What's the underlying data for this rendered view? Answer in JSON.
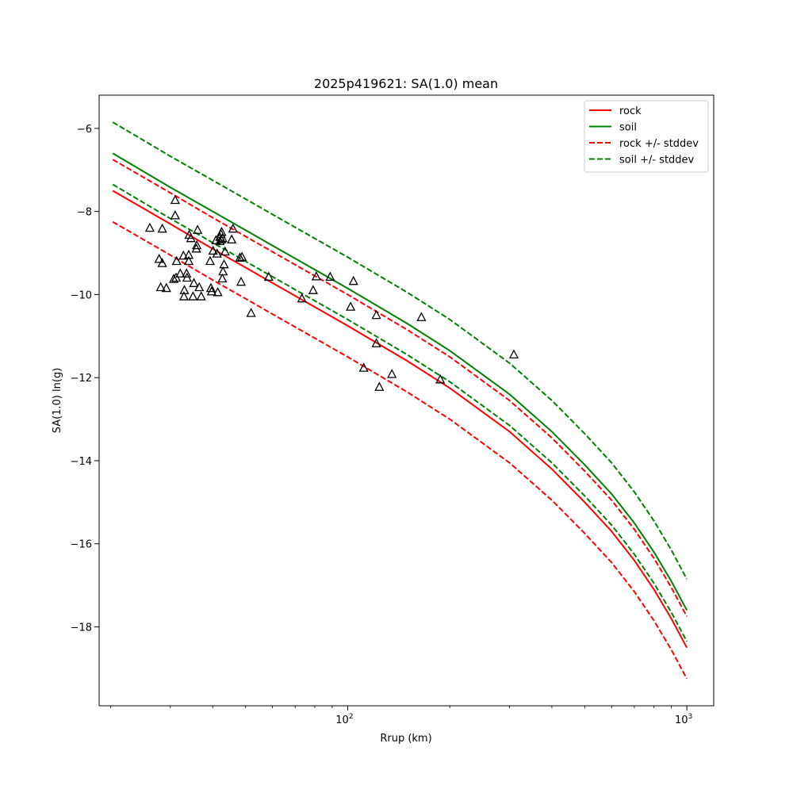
{
  "chart_data": {
    "type": "line",
    "title": "2025p419621: SA(1.0) mean",
    "xlabel": "Rrup (km)",
    "ylabel": "SA(1.0) ln(g)",
    "x_scale": "log",
    "xlim": [
      18.5,
      1200
    ],
    "ylim": [
      -19.9,
      -5.2
    ],
    "x_major_ticks": [
      {
        "value": 100,
        "base": "10",
        "exp": "2"
      },
      {
        "value": 1000,
        "base": "10",
        "exp": "3"
      }
    ],
    "x_minor_ticks": [
      20,
      30,
      40,
      50,
      60,
      70,
      80,
      90,
      200,
      300,
      400,
      500,
      600,
      700,
      800,
      900
    ],
    "y_ticks": [
      {
        "value": -6,
        "label": "−6"
      },
      {
        "value": -8,
        "label": "−8"
      },
      {
        "value": -10,
        "label": "−10"
      },
      {
        "value": -12,
        "label": "−12"
      },
      {
        "value": -14,
        "label": "−14"
      },
      {
        "value": -16,
        "label": "−16"
      },
      {
        "value": -18,
        "label": "−18"
      }
    ],
    "grid": false,
    "legend_position": "top-right",
    "series": [
      {
        "name": "rock",
        "style": "solid",
        "color": "#ff0000",
        "x": [
          20.3,
          30,
          40,
          50,
          60,
          80,
          100,
          150,
          200,
          300,
          400,
          500,
          600,
          700,
          800,
          900,
          1000
        ],
        "y": [
          -7.5,
          -8.3,
          -8.9,
          -9.35,
          -9.72,
          -10.3,
          -10.75,
          -11.6,
          -12.25,
          -13.3,
          -14.2,
          -15.0,
          -15.7,
          -16.4,
          -17.1,
          -17.8,
          -18.5
        ]
      },
      {
        "name": "soil",
        "style": "solid",
        "color": "#008000",
        "x": [
          20.3,
          30,
          40,
          50,
          60,
          80,
          100,
          150,
          200,
          300,
          400,
          500,
          600,
          700,
          800,
          900,
          1000
        ],
        "y": [
          -6.6,
          -7.42,
          -8.0,
          -8.45,
          -8.82,
          -9.4,
          -9.85,
          -10.7,
          -11.35,
          -12.4,
          -13.3,
          -14.1,
          -14.8,
          -15.5,
          -16.2,
          -16.9,
          -17.6
        ]
      },
      {
        "name": "rock +/- stddev",
        "style": "dashed",
        "color": "#ff0000",
        "x": [
          20.3,
          30,
          40,
          50,
          60,
          80,
          100,
          150,
          200,
          300,
          400,
          500,
          600,
          700,
          800,
          900,
          1000
        ],
        "y": [
          -6.75,
          -7.55,
          -8.15,
          -8.6,
          -8.97,
          -9.55,
          -10.0,
          -10.85,
          -11.5,
          -12.55,
          -13.45,
          -14.25,
          -14.95,
          -15.65,
          -16.35,
          -17.05,
          -17.75
        ]
      },
      {
        "name": "",
        "style": "dashed",
        "color": "#ff0000",
        "x": [
          20.3,
          30,
          40,
          50,
          60,
          80,
          100,
          150,
          200,
          300,
          400,
          500,
          600,
          700,
          800,
          900,
          1000
        ],
        "y": [
          -8.25,
          -9.05,
          -9.65,
          -10.1,
          -10.47,
          -11.05,
          -11.5,
          -12.35,
          -13.0,
          -14.05,
          -14.95,
          -15.75,
          -16.45,
          -17.15,
          -17.85,
          -18.55,
          -19.25
        ]
      },
      {
        "name": "soil +/- stddev",
        "style": "dashed",
        "color": "#008000",
        "x": [
          20.3,
          30,
          40,
          50,
          60,
          80,
          100,
          150,
          200,
          300,
          400,
          500,
          600,
          700,
          800,
          900,
          1000
        ],
        "y": [
          -5.85,
          -6.67,
          -7.25,
          -7.7,
          -8.07,
          -8.65,
          -9.1,
          -9.95,
          -10.6,
          -11.65,
          -12.55,
          -13.35,
          -14.05,
          -14.75,
          -15.45,
          -16.15,
          -16.85
        ]
      },
      {
        "name": "",
        "style": "dashed",
        "color": "#008000",
        "x": [
          20.3,
          30,
          40,
          50,
          60,
          80,
          100,
          150,
          200,
          300,
          400,
          500,
          600,
          700,
          800,
          900,
          1000
        ],
        "y": [
          -7.35,
          -8.17,
          -8.75,
          -9.2,
          -9.57,
          -10.15,
          -10.6,
          -11.45,
          -12.1,
          -13.15,
          -14.05,
          -14.85,
          -15.55,
          -16.25,
          -16.95,
          -17.65,
          -18.35
        ]
      }
    ],
    "observations": {
      "marker": "triangle-open",
      "color": "#000000",
      "points": [
        [
          26.1,
          -8.4
        ],
        [
          28.4,
          -8.42
        ],
        [
          31.0,
          -7.73
        ],
        [
          31.0,
          -8.1
        ],
        [
          27.8,
          -9.15
        ],
        [
          28.4,
          -9.25
        ],
        [
          28.1,
          -9.83
        ],
        [
          29.2,
          -9.85
        ],
        [
          30.7,
          -9.63
        ],
        [
          31.2,
          -9.6
        ],
        [
          31.3,
          -9.2
        ],
        [
          32.1,
          -9.5
        ],
        [
          32.8,
          -9.07
        ],
        [
          33.0,
          -9.9
        ],
        [
          32.9,
          -10.05
        ],
        [
          33.5,
          -9.5
        ],
        [
          33.6,
          -9.6
        ],
        [
          34.0,
          -9.2
        ],
        [
          34.0,
          -9.05
        ],
        [
          34.1,
          -8.57
        ],
        [
          34.5,
          -8.65
        ],
        [
          35.2,
          -9.73
        ],
        [
          35.0,
          -10.05
        ],
        [
          35.8,
          -8.9
        ],
        [
          35.9,
          -8.82
        ],
        [
          36.1,
          -8.45
        ],
        [
          36.5,
          -9.83
        ],
        [
          37.0,
          -10.05
        ],
        [
          39.3,
          -9.2
        ],
        [
          39.5,
          -9.85
        ],
        [
          39.7,
          -9.93
        ],
        [
          40.1,
          -8.95
        ],
        [
          40.9,
          -8.7
        ],
        [
          41.2,
          -9.02
        ],
        [
          41.4,
          -9.95
        ],
        [
          42.0,
          -8.62
        ],
        [
          42.0,
          -8.72
        ],
        [
          42.3,
          -8.55
        ],
        [
          42.4,
          -8.68
        ],
        [
          42.5,
          -8.5
        ],
        [
          42.8,
          -8.65
        ],
        [
          42.9,
          -9.45
        ],
        [
          42.7,
          -9.62
        ],
        [
          43.2,
          -9.28
        ],
        [
          43.5,
          -8.97
        ],
        [
          45.5,
          -8.68
        ],
        [
          45.9,
          -8.42
        ],
        [
          48.1,
          -9.12
        ],
        [
          48.8,
          -9.1
        ],
        [
          48.5,
          -9.7
        ],
        [
          51.9,
          -10.45
        ],
        [
          58.5,
          -9.58
        ],
        [
          73.3,
          -10.1
        ],
        [
          79.1,
          -9.9
        ],
        [
          80.8,
          -9.57
        ],
        [
          88.8,
          -9.58
        ],
        [
          102.0,
          -10.3
        ],
        [
          104.0,
          -9.68
        ],
        [
          111.5,
          -11.77
        ],
        [
          121.5,
          -10.5
        ],
        [
          121.5,
          -11.18
        ],
        [
          124.0,
          -12.23
        ],
        [
          135.0,
          -11.92
        ],
        [
          165.0,
          -10.55
        ],
        [
          187.5,
          -12.05
        ],
        [
          309.0,
          -11.45
        ]
      ]
    }
  }
}
